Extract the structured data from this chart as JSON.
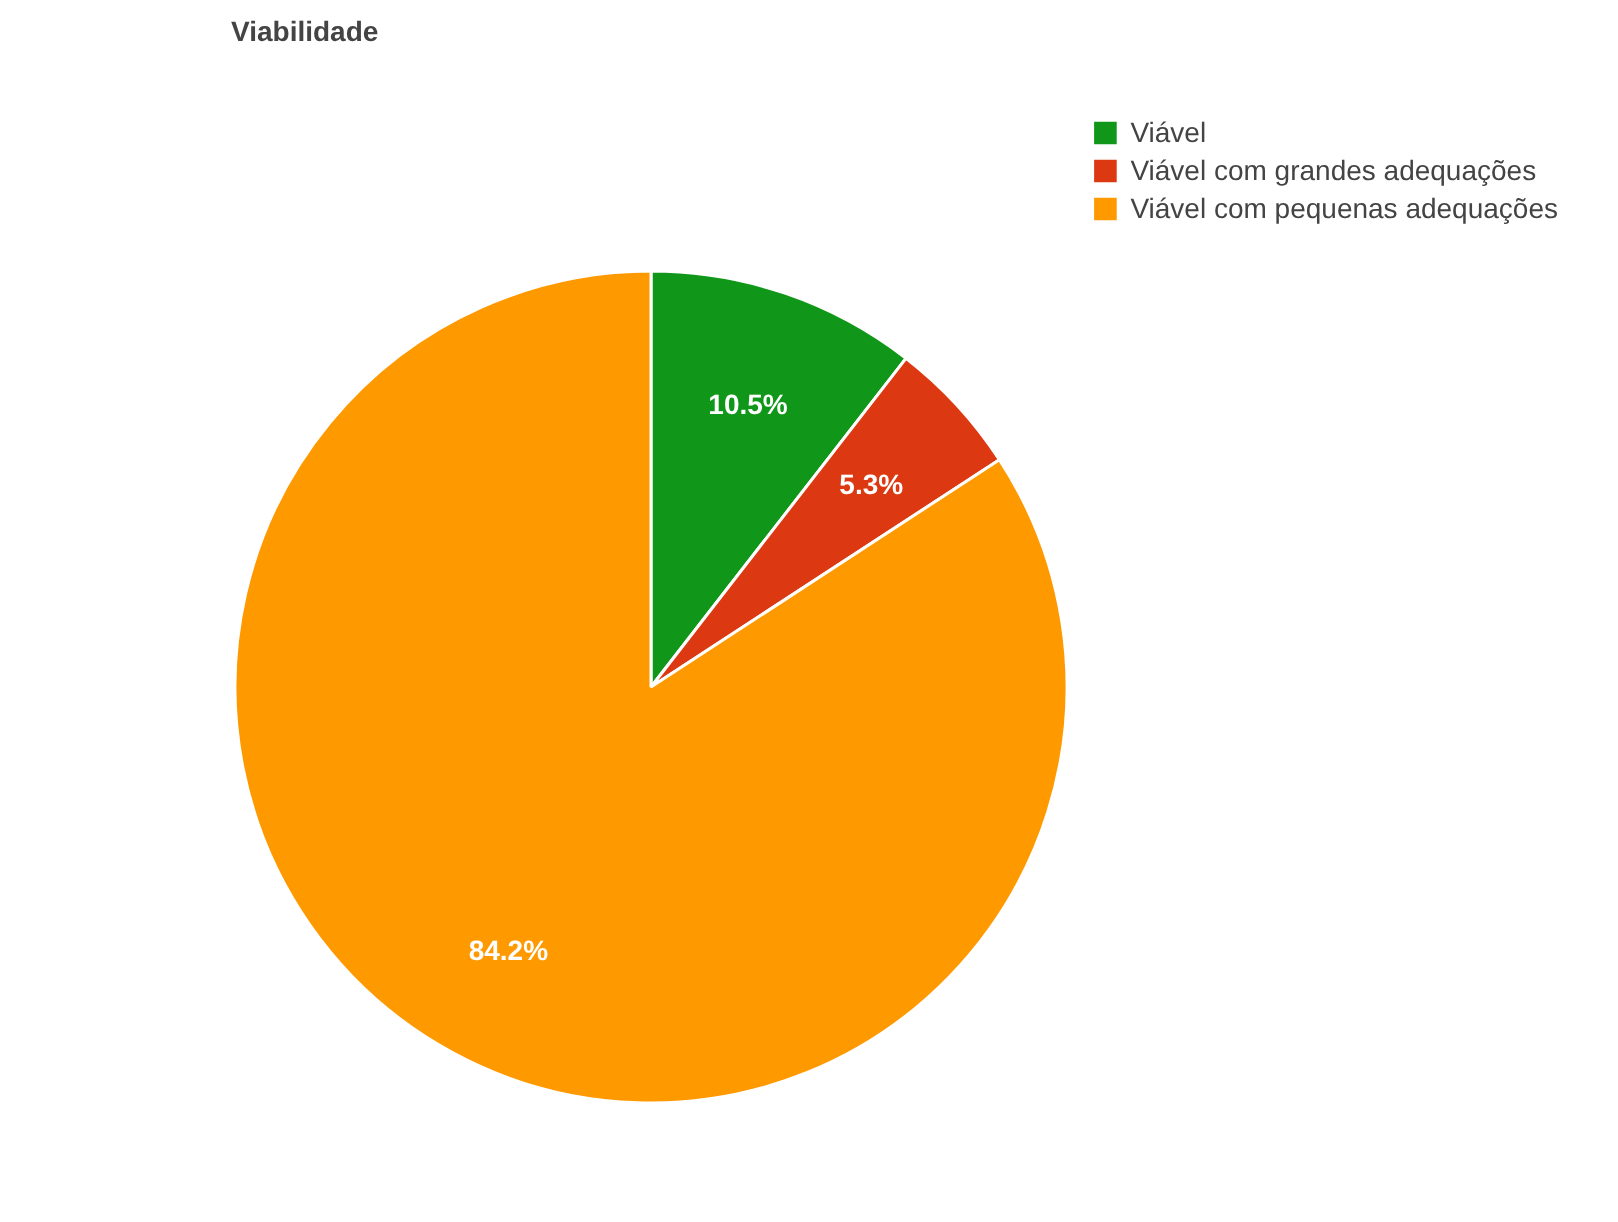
{
  "chart_data": {
    "type": "pie",
    "title": "Viabilidade",
    "categories": [
      "Viável",
      "Viável com grandes adequações",
      "Viável com pequenas adequações"
    ],
    "values": [
      10.5,
      5.3,
      84.2
    ],
    "colors": [
      "#109618",
      "#dc3912",
      "#ff9900"
    ],
    "value_labels": [
      "10.5%",
      "5.3%",
      "84.2%"
    ],
    "legend": "top right"
  }
}
